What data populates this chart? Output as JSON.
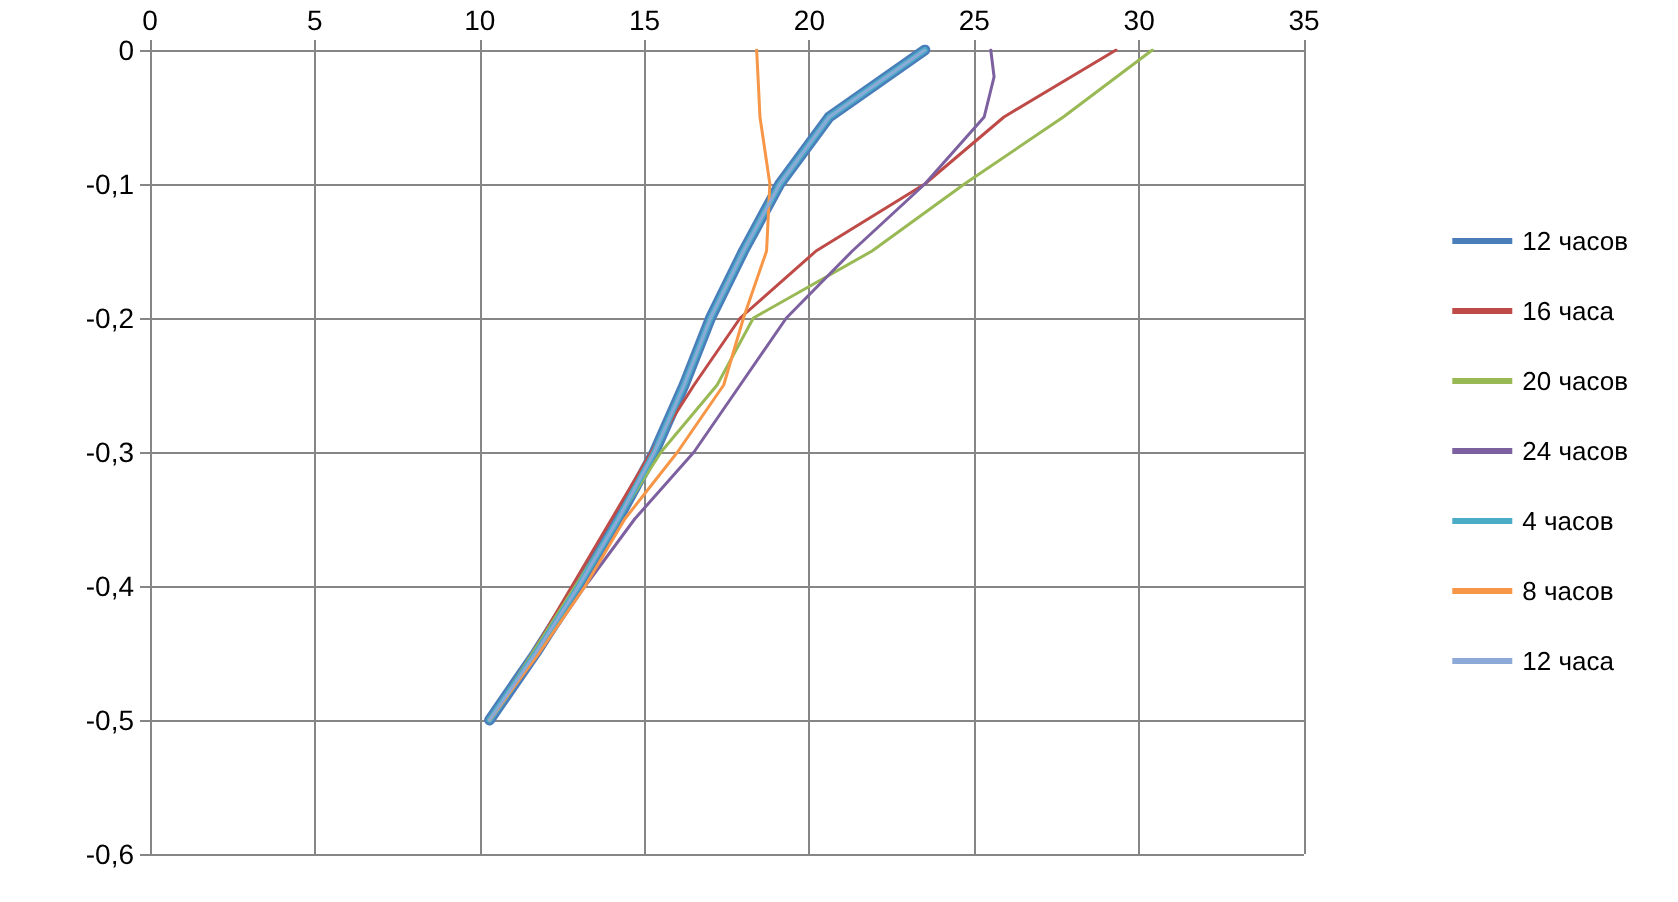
{
  "chart_data": {
    "type": "line",
    "xlim": [
      0,
      35
    ],
    "xticks": [
      0,
      5,
      10,
      15,
      20,
      25,
      30,
      35
    ],
    "ylim": [
      -0.6,
      0
    ],
    "yticks": [
      {
        "value": -0.6,
        "label": "-0,6"
      },
      {
        "value": -0.5,
        "label": "-0,5"
      },
      {
        "value": -0.4,
        "label": "-0,4"
      },
      {
        "value": -0.3,
        "label": "-0,3"
      },
      {
        "value": -0.2,
        "label": "-0,2"
      },
      {
        "value": -0.1,
        "label": "-0,1"
      },
      0
    ],
    "grid": true,
    "legend": "right",
    "marker": "none",
    "line_style": "solid",
    "series": [
      {
        "name": "12 часов",
        "color": "#4a7ebb",
        "x": [
          23.5,
          20.6,
          19.1,
          18.0,
          17.0,
          16.2,
          15.3,
          14.2,
          13.0,
          11.7,
          10.3
        ],
        "values": [
          0,
          -0.05,
          -0.1,
          -0.15,
          -0.2,
          -0.25,
          -0.3,
          -0.35,
          -0.4,
          -0.45,
          -0.5
        ]
      },
      {
        "name": "16 часа",
        "color": "#be4b48",
        "x": [
          29.3,
          25.9,
          23.5,
          20.2,
          17.9,
          16.5,
          15.2,
          14.0,
          12.8,
          11.6,
          10.3
        ],
        "values": [
          0,
          -0.05,
          -0.1,
          -0.15,
          -0.2,
          -0.25,
          -0.3,
          -0.35,
          -0.4,
          -0.45,
          -0.5
        ]
      },
      {
        "name": "20 часов",
        "color": "#98b954",
        "x": [
          30.4,
          27.7,
          24.7,
          21.9,
          18.3,
          17.2,
          15.5,
          14.2,
          12.9,
          11.6,
          10.3
        ],
        "values": [
          0,
          -0.05,
          -0.1,
          -0.15,
          -0.2,
          -0.25,
          -0.3,
          -0.35,
          -0.4,
          -0.45,
          -0.5
        ]
      },
      {
        "name": "24 часов",
        "color": "#7d60a0",
        "x": [
          25.5,
          25.6,
          25.3,
          23.5,
          21.3,
          19.3,
          17.9,
          16.5,
          14.7,
          13.2,
          11.8,
          10.3
        ],
        "values": [
          0,
          -0.02,
          -0.05,
          -0.1,
          -0.15,
          -0.2,
          -0.25,
          -0.3,
          -0.35,
          -0.4,
          -0.45,
          -0.5
        ]
      },
      {
        "name": "4 часов",
        "color": "#4bacc6",
        "x": [
          23.5,
          20.6,
          19.1,
          18.0,
          17.0,
          16.2,
          15.3,
          14.2,
          13.0,
          11.7,
          10.3
        ],
        "values": [
          0,
          -0.05,
          -0.1,
          -0.15,
          -0.2,
          -0.25,
          -0.3,
          -0.35,
          -0.4,
          -0.45,
          -0.5
        ]
      },
      {
        "name": "8 часов",
        "color": "#f79646",
        "x": [
          18.4,
          18.5,
          18.8,
          18.7,
          18.0,
          17.4,
          16.0,
          14.4,
          13.2,
          11.8,
          10.3
        ],
        "values": [
          0,
          -0.05,
          -0.1,
          -0.15,
          -0.2,
          -0.25,
          -0.3,
          -0.35,
          -0.4,
          -0.45,
          -0.5
        ]
      },
      {
        "name": "12 часа",
        "color": "#8ca9d7",
        "x": [
          23.5,
          20.6,
          19.1,
          18.0,
          17.0,
          16.2,
          15.3,
          14.2,
          13.0,
          11.7,
          10.3
        ],
        "values": [
          0,
          -0.05,
          -0.1,
          -0.15,
          -0.2,
          -0.25,
          -0.3,
          -0.35,
          -0.4,
          -0.45,
          -0.5
        ]
      }
    ]
  }
}
